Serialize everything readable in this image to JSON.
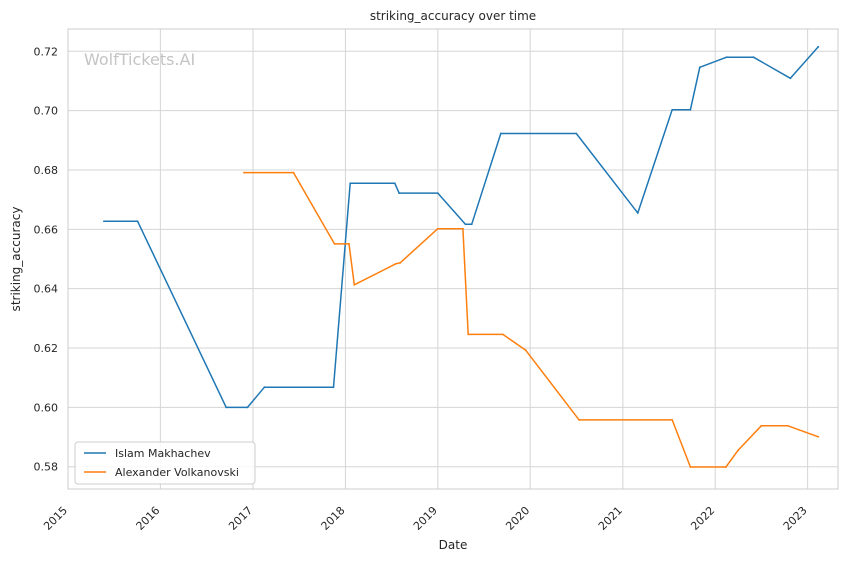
{
  "chart_data": {
    "type": "line",
    "title": "striking_accuracy over time",
    "xlabel": "Date",
    "ylabel": "striking_accuracy",
    "watermark": "WolfTickets.AI",
    "x_ticks": [
      "2015",
      "2016",
      "2017",
      "2018",
      "2019",
      "2020",
      "2021",
      "2022",
      "2023"
    ],
    "y_ticks": [
      "0.58",
      "0.60",
      "0.62",
      "0.64",
      "0.66",
      "0.68",
      "0.70",
      "0.72"
    ],
    "xlim": [
      "2015-01-01",
      "2023-05-01"
    ],
    "ylim": [
      0.5725,
      0.7275
    ],
    "grid": true,
    "legend_position": "lower-left",
    "series": [
      {
        "name": "Islam Makhachev",
        "color": "#1f77b4",
        "points": [
          [
            "2015-05-23",
            0.6627
          ],
          [
            "2015-10-03",
            0.6627
          ],
          [
            "2016-09-17",
            0.6
          ],
          [
            "2016-12-10",
            0.6
          ],
          [
            "2017-02-15",
            0.6068
          ],
          [
            "2017-11-15",
            0.6068
          ],
          [
            "2018-01-20",
            0.6755
          ],
          [
            "2018-07-15",
            0.6755
          ],
          [
            "2018-08-01",
            0.6722
          ],
          [
            "2019-01-01",
            0.6722
          ],
          [
            "2019-04-20",
            0.6617
          ],
          [
            "2019-05-15",
            0.6617
          ],
          [
            "2019-09-07",
            0.6923
          ],
          [
            "2020-07-01",
            0.6923
          ],
          [
            "2021-03-01",
            0.6655
          ],
          [
            "2021-07-15",
            0.7003
          ],
          [
            "2021-09-25",
            0.7003
          ],
          [
            "2021-11-01",
            0.7146
          ],
          [
            "2022-02-15",
            0.718
          ],
          [
            "2022-06-01",
            0.718
          ],
          [
            "2022-10-25",
            0.7109
          ],
          [
            "2023-02-12",
            0.7215
          ]
        ]
      },
      {
        "name": "Alexander Volkanovski",
        "color": "#ff7f0e",
        "points": [
          [
            "2016-11-26",
            0.6791
          ],
          [
            "2017-06-10",
            0.6791
          ],
          [
            "2017-11-19",
            0.6551
          ],
          [
            "2018-01-15",
            0.6551
          ],
          [
            "2018-02-05",
            0.6413
          ],
          [
            "2018-07-20",
            0.6484
          ],
          [
            "2018-08-05",
            0.6487
          ],
          [
            "2019-01-01",
            0.6602
          ],
          [
            "2019-04-10",
            0.6602
          ],
          [
            "2019-05-01",
            0.6246
          ],
          [
            "2019-09-15",
            0.6246
          ],
          [
            "2019-12-14",
            0.6193
          ],
          [
            "2020-07-12",
            0.5958
          ],
          [
            "2021-07-15",
            0.5958
          ],
          [
            "2021-09-25",
            0.5799
          ],
          [
            "2022-02-12",
            0.5799
          ],
          [
            "2022-04-01",
            0.5855
          ],
          [
            "2022-07-02",
            0.5938
          ],
          [
            "2022-10-15",
            0.5938
          ],
          [
            "2023-02-12",
            0.5901
          ]
        ]
      }
    ]
  }
}
